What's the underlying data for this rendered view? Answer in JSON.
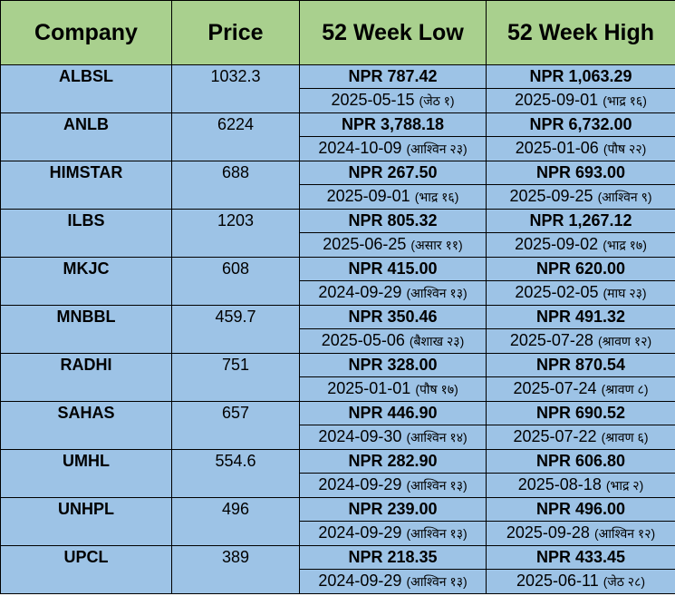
{
  "headers": [
    "Company",
    "Price",
    "52 Week Low",
    "52 Week High"
  ],
  "rows": [
    {
      "company": "ALBSL",
      "price": "1032.3",
      "low": "NPR 787.42",
      "low_date": "2025-05-15",
      "low_np": "(जेठ १)",
      "high": "NPR 1,063.29",
      "high_date": "2025-09-01",
      "high_np": "(भाद्र १६)"
    },
    {
      "company": "ANLB",
      "price": "6224",
      "low": "NPR 3,788.18",
      "low_date": "2024-10-09",
      "low_np": "(आश्विन २३)",
      "high": "NPR 6,732.00",
      "high_date": "2025-01-06",
      "high_np": "(पौष २२)"
    },
    {
      "company": "HIMSTAR",
      "price": "688",
      "low": "NPR 267.50",
      "low_date": "2025-09-01",
      "low_np": "(भाद्र १६)",
      "high": "NPR 693.00",
      "high_date": "2025-09-25",
      "high_np": "(आश्विन ९)"
    },
    {
      "company": "ILBS",
      "price": "1203",
      "low": "NPR 805.32",
      "low_date": "2025-06-25",
      "low_np": "(असार ११)",
      "high": "NPR 1,267.12",
      "high_date": "2025-09-02",
      "high_np": "(भाद्र १७)"
    },
    {
      "company": "MKJC",
      "price": "608",
      "low": "NPR 415.00",
      "low_date": "2024-09-29",
      "low_np": "(आश्विन १३)",
      "high": "NPR 620.00",
      "high_date": "2025-02-05",
      "high_np": "(माघ २३)"
    },
    {
      "company": "MNBBL",
      "price": "459.7",
      "low": "NPR 350.46",
      "low_date": "2025-05-06",
      "low_np": "(बैशाख २३)",
      "high": "NPR 491.32",
      "high_date": "2025-07-28",
      "high_np": "(श्रावण १२)"
    },
    {
      "company": "RADHI",
      "price": "751",
      "low": "NPR 328.00",
      "low_date": "2025-01-01",
      "low_np": "(पौष १७)",
      "high": "NPR 870.54",
      "high_date": "2025-07-24",
      "high_np": "(श्रावण ८)"
    },
    {
      "company": "SAHAS",
      "price": "657",
      "low": "NPR 446.90",
      "low_date": "2024-09-30",
      "low_np": "(आश्विन १४)",
      "high": "NPR 690.52",
      "high_date": "2025-07-22",
      "high_np": "(श्रावण ६)"
    },
    {
      "company": "UMHL",
      "price": "554.6",
      "low": "NPR 282.90",
      "low_date": "2024-09-29",
      "low_np": "(आश्विन १३)",
      "high": "NPR 606.80",
      "high_date": "2025-08-18",
      "high_np": "(भाद्र २)"
    },
    {
      "company": "UNHPL",
      "price": "496",
      "low": "NPR 239.00",
      "low_date": "2024-09-29",
      "low_np": "(आश्विन १३)",
      "high": "NPR 496.00",
      "high_date": "2025-09-28",
      "high_np": "(आश्विन १२)"
    },
    {
      "company": "UPCL",
      "price": "389",
      "low": "NPR 218.35",
      "low_date": "2024-09-29",
      "low_np": "(आश्विन १३)",
      "high": "NPR 433.45",
      "high_date": "2025-06-11",
      "high_np": "(जेठ २८)"
    }
  ]
}
